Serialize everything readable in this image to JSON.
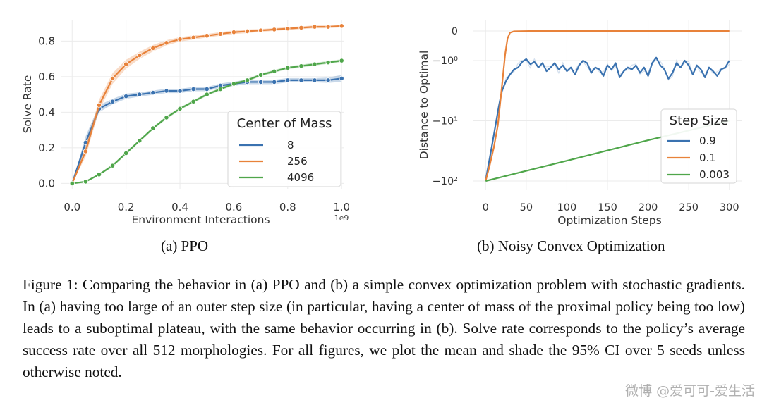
{
  "chart_data": [
    {
      "type": "line",
      "title": "",
      "xlabel": "Environment Interactions",
      "ylabel": "Solve Rate",
      "x_scale_note": "1e9",
      "xlim": [
        -0.04,
        1.01
      ],
      "ylim": [
        -0.03,
        0.92
      ],
      "xticks": [
        0.0,
        0.2,
        0.4,
        0.6,
        0.8,
        1.0
      ],
      "xtick_labels": [
        "0.0",
        "0.2",
        "0.4",
        "0.6",
        "0.8",
        "1.0"
      ],
      "yticks": [
        0.0,
        0.2,
        0.4,
        0.6,
        0.8
      ],
      "ytick_labels": [
        "0.0",
        "0.2",
        "0.4",
        "0.6",
        "0.8"
      ],
      "grid": true,
      "legend_title": "Center of Mass",
      "legend_position": "right",
      "x": [
        0.0,
        0.05,
        0.1,
        0.15,
        0.2,
        0.25,
        0.3,
        0.35,
        0.4,
        0.45,
        0.5,
        0.55,
        0.6,
        0.65,
        0.7,
        0.75,
        0.8,
        0.85,
        0.9,
        0.95,
        1.0
      ],
      "series": [
        {
          "name": "8",
          "color": "#3a72b0",
          "values": [
            0.0,
            0.23,
            0.42,
            0.46,
            0.49,
            0.5,
            0.51,
            0.52,
            0.52,
            0.53,
            0.53,
            0.55,
            0.56,
            0.57,
            0.57,
            0.57,
            0.58,
            0.58,
            0.58,
            0.58,
            0.59
          ],
          "band": [
            0.0,
            0.035,
            0.02,
            0.015,
            0.015,
            0.012,
            0.012,
            0.012,
            0.012,
            0.012,
            0.012,
            0.012,
            0.012,
            0.012,
            0.012,
            0.012,
            0.012,
            0.012,
            0.012,
            0.015,
            0.02
          ]
        },
        {
          "name": "256",
          "color": "#e8823a",
          "values": [
            0.0,
            0.18,
            0.44,
            0.59,
            0.67,
            0.72,
            0.76,
            0.79,
            0.81,
            0.82,
            0.83,
            0.84,
            0.85,
            0.855,
            0.86,
            0.865,
            0.87,
            0.875,
            0.88,
            0.88,
            0.885
          ],
          "band": [
            0.0,
            0.03,
            0.03,
            0.03,
            0.025,
            0.02,
            0.018,
            0.015,
            0.012,
            0.012,
            0.01,
            0.01,
            0.01,
            0.01,
            0.008,
            0.008,
            0.008,
            0.008,
            0.008,
            0.008,
            0.008
          ]
        },
        {
          "name": "4096",
          "color": "#4fa64a",
          "values": [
            0.0,
            0.01,
            0.05,
            0.1,
            0.17,
            0.24,
            0.31,
            0.37,
            0.42,
            0.46,
            0.5,
            0.53,
            0.56,
            0.58,
            0.61,
            0.63,
            0.65,
            0.66,
            0.67,
            0.68,
            0.69
          ],
          "band": [
            0.0,
            0.004,
            0.006,
            0.008,
            0.008,
            0.008,
            0.008,
            0.008,
            0.008,
            0.008,
            0.008,
            0.008,
            0.008,
            0.008,
            0.008,
            0.008,
            0.008,
            0.008,
            0.008,
            0.008,
            0.008
          ]
        }
      ]
    },
    {
      "type": "line",
      "title": "",
      "xlabel": "Optimization Steps",
      "ylabel": "Distance to Optimal",
      "y_scale": "symlog",
      "xlim": [
        -15,
        315
      ],
      "xticks": [
        0,
        50,
        100,
        150,
        200,
        250,
        300
      ],
      "xtick_labels": [
        "0",
        "50",
        "100",
        "150",
        "200",
        "250",
        "300"
      ],
      "yticks": [
        0,
        -1,
        -10,
        -100
      ],
      "ytick_labels": [
        "0",
        "−10⁰",
        "−10¹",
        "−10²"
      ],
      "grid": true,
      "legend_title": "Step Size",
      "legend_position": "lower-right",
      "series": [
        {
          "name": "0.9",
          "color": "#3a72b0",
          "x": [
            0,
            8,
            16,
            20,
            25,
            30,
            35,
            40,
            45,
            50,
            55,
            60,
            65,
            70,
            75,
            80,
            85,
            90,
            95,
            100,
            105,
            110,
            115,
            120,
            125,
            130,
            135,
            140,
            145,
            150,
            155,
            160,
            165,
            170,
            175,
            180,
            185,
            190,
            195,
            200,
            205,
            210,
            215,
            220,
            225,
            230,
            235,
            240,
            245,
            250,
            255,
            260,
            265,
            270,
            275,
            280,
            285,
            290,
            295,
            300
          ],
          "values": [
            -100,
            -25,
            -6,
            -3.2,
            -2.2,
            -1.7,
            -1.4,
            -1.3,
            -1.05,
            -0.95,
            -1.15,
            -1.05,
            -1.3,
            -1.1,
            -1.5,
            -1.3,
            -1.1,
            -1.4,
            -1.2,
            -1.5,
            -1.3,
            -1.7,
            -1.2,
            -1.0,
            -1.1,
            -1.6,
            -1.3,
            -1.4,
            -1.8,
            -1.2,
            -1.4,
            -1.1,
            -1.9,
            -1.5,
            -1.3,
            -1.4,
            -1.2,
            -1.6,
            -1.3,
            -1.8,
            -1.1,
            -0.9,
            -1.2,
            -1.4,
            -2.0,
            -1.6,
            -1.1,
            -1.3,
            -1.0,
            -1.2,
            -1.7,
            -1.2,
            -1.4,
            -1.9,
            -1.3,
            -1.5,
            -1.8,
            -1.4,
            -1.3,
            -1.0
          ]
        },
        {
          "name": "0.1",
          "color": "#e8823a",
          "x": [
            0,
            5,
            10,
            15,
            18,
            21,
            24,
            27,
            30,
            35,
            60,
            100,
            150,
            200,
            250,
            300
          ],
          "values": [
            -100,
            -55,
            -28,
            -12,
            -5,
            -2,
            -0.8,
            -0.25,
            -0.06,
            -0.01,
            0,
            0,
            0,
            0,
            0,
            0
          ]
        },
        {
          "name": "0.003",
          "color": "#4fa64a",
          "x": [
            0,
            100,
            200,
            300
          ],
          "values": [
            -100,
            -46,
            -21,
            -10
          ]
        }
      ]
    }
  ],
  "panel_a": {
    "caption": "(a) PPO"
  },
  "panel_b": {
    "caption": "(b) Noisy Convex Optimization"
  },
  "figure_caption": "Figure 1: Comparing the behavior in (a) PPO and (b) a simple convex optimization problem with stochastic gradients. In (a) having too large of an outer step size (in particular, having a center of mass of the proximal policy being too low) leads to a suboptimal plateau, with the same behavior occurring in (b). Solve rate corresponds to the policy’s average success rate over all 512 morphologies. For all figures, we plot the mean and shade the 95% CI over 5 seeds unless otherwise noted.",
  "watermark": "微博 @爱可可-爱生活"
}
